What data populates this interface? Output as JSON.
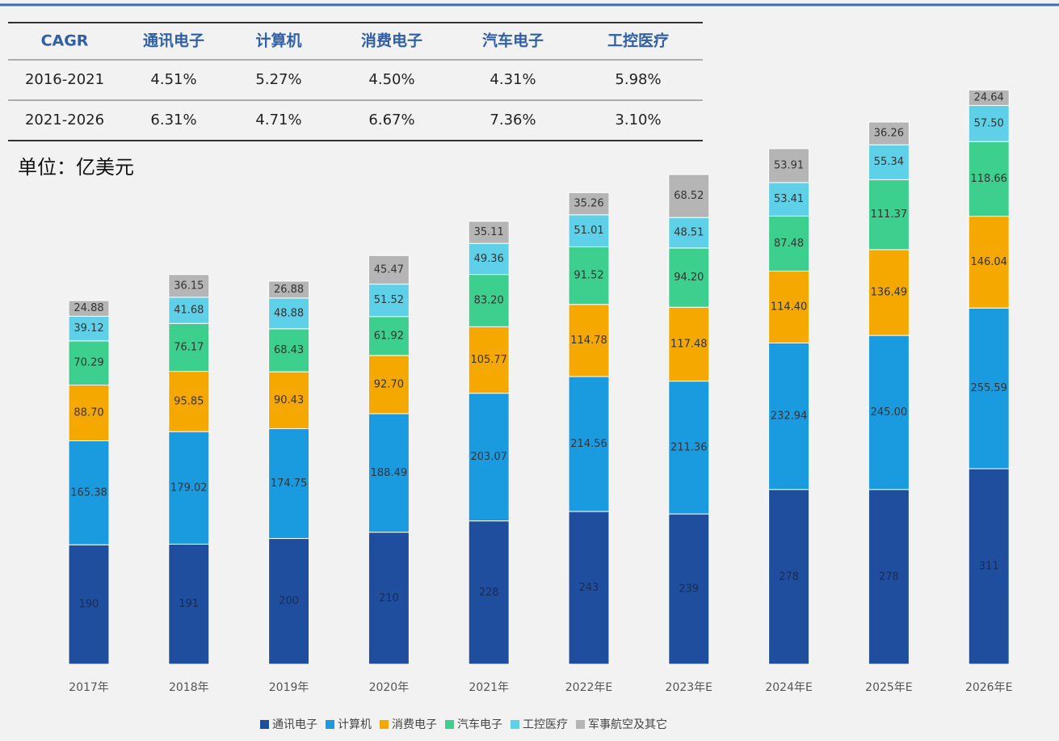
{
  "table": {
    "header": [
      "CAGR",
      "通讯电子",
      "计算机",
      "消费电子",
      "汽车电子",
      "工控医疗"
    ],
    "rows": [
      [
        "2016-2021",
        "4.51%",
        "5.27%",
        "4.50%",
        "4.31%",
        "5.98%"
      ],
      [
        "2021-2026",
        "6.31%",
        "4.71%",
        "6.67%",
        "7.36%",
        "3.10%"
      ]
    ]
  },
  "unit": "单位：亿美元",
  "chart_data": {
    "type": "stacked_bar",
    "categories": [
      "2017年",
      "2018年",
      "2019年",
      "2020年",
      "2021年",
      "2022年E",
      "2023年E",
      "2024年E",
      "2025年E",
      "2026年E"
    ],
    "series": [
      {
        "name": "通讯电子",
        "color": "#1f4e9e",
        "values": [
          190,
          191,
          200,
          210,
          228,
          243,
          239,
          278,
          278,
          311
        ]
      },
      {
        "name": "计算机",
        "color": "#1a9be0",
        "values": [
          165.38,
          179.02,
          174.75,
          188.49,
          203.07,
          214.56,
          211.36,
          232.94,
          245.0,
          255.59
        ],
        "value_labels": [
          "165.38",
          "179.02",
          "174.75",
          "188.49",
          "203.07",
          "214.56",
          "211.36",
          "232.94",
          "245.00",
          "255.59"
        ]
      },
      {
        "name": "消费电子",
        "color": "#f5a800",
        "values": [
          88.7,
          95.85,
          90.43,
          92.7,
          105.77,
          114.78,
          117.48,
          114.4,
          136.49,
          146.04
        ],
        "value_labels": [
          "88.70",
          "95.85",
          "90.43",
          "92.70",
          "105.77",
          "114.78",
          "117.48",
          "114.40",
          "136.49",
          "146.04"
        ]
      },
      {
        "name": "汽车电子",
        "color": "#3ccf8e",
        "values": [
          70.29,
          76.17,
          68.43,
          61.92,
          83.2,
          91.52,
          94.2,
          87.48,
          111.37,
          118.66
        ],
        "value_labels": [
          "70.29",
          "76.17",
          "68.43",
          "61.92",
          "83.20",
          "91.52",
          "94.20",
          "87.48",
          "111.37",
          "118.66"
        ]
      },
      {
        "name": "工控医疗",
        "color": "#5ed0e8",
        "values": [
          39.12,
          41.68,
          48.88,
          51.52,
          49.36,
          51.01,
          48.51,
          53.41,
          55.34,
          57.5
        ],
        "value_labels": [
          "39.12",
          "41.68",
          "48.88",
          "51.52",
          "49.36",
          "51.01",
          "48.51",
          "53.41",
          "55.34",
          "57.50"
        ]
      },
      {
        "name": "军事航空及其它",
        "color": "#b5b5b5",
        "values": [
          24.88,
          36.15,
          26.88,
          45.47,
          35.11,
          35.26,
          68.52,
          53.91,
          36.26,
          24.64
        ]
      }
    ]
  }
}
